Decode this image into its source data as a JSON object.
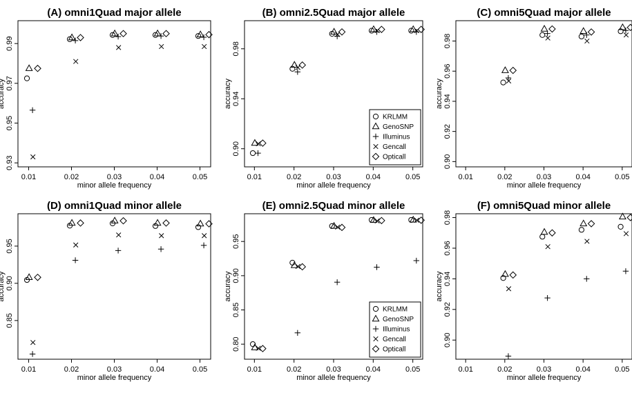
{
  "chart_data": [
    {
      "type": "scatter",
      "title": "(A) omni1Quad major allele",
      "xlabel": "minor allele frequency",
      "ylabel": "accuracy",
      "x": [
        0.01,
        0.02,
        0.03,
        0.04,
        0.05
      ],
      "x_ticks": [
        "0.01",
        "0.02",
        "0.03",
        "0.04",
        "0.05"
      ],
      "y_ticks": [
        "0.93",
        "0.95",
        "0.97",
        "0.99"
      ],
      "xlim": [
        0.0075,
        0.0525
      ],
      "ylim": [
        0.928,
        1.0015
      ],
      "legend": false,
      "series": [
        {
          "name": "KRLMM",
          "marker": "circle",
          "values": [
            0.9725,
            0.9922,
            0.9943,
            0.9943,
            0.9938
          ]
        },
        {
          "name": "GenoSNP",
          "marker": "triangle",
          "values": [
            0.9775,
            0.993,
            0.995,
            0.995,
            0.9945
          ]
        },
        {
          "name": "Illuminus",
          "marker": "plus",
          "values": [
            0.9565,
            0.9915,
            0.9935,
            0.9938,
            0.9932
          ]
        },
        {
          "name": "Gencall",
          "marker": "cross",
          "values": [
            0.933,
            0.981,
            0.988,
            0.9885,
            0.9885
          ]
        },
        {
          "name": "Opticall",
          "marker": "diamond",
          "values": [
            0.9775,
            0.993,
            0.995,
            0.995,
            0.9945
          ]
        }
      ]
    },
    {
      "type": "scatter",
      "title": "(B) omni2.5Quad major allele",
      "xlabel": "minor allele frequency",
      "ylabel": "accuracy",
      "x": [
        0.01,
        0.02,
        0.03,
        0.04,
        0.05
      ],
      "x_ticks": [
        "0.01",
        "0.02",
        "0.03",
        "0.04",
        "0.05"
      ],
      "y_ticks": [
        "0.90",
        "0.94",
        "0.98"
      ],
      "xlim": [
        0.0075,
        0.0525
      ],
      "ylim": [
        0.8855,
        1.0025
      ],
      "legend": true,
      "legend_position": "bottom-right",
      "series": [
        {
          "name": "KRLMM",
          "marker": "circle",
          "values": [
            0.8965,
            0.964,
            0.992,
            0.9945,
            0.9945
          ]
        },
        {
          "name": "GenoSNP",
          "marker": "triangle",
          "values": [
            0.9045,
            0.967,
            0.9935,
            0.9955,
            0.9955
          ]
        },
        {
          "name": "Illuminus",
          "marker": "plus",
          "values": [
            0.8965,
            0.9615,
            0.99,
            0.9935,
            0.9935
          ]
        },
        {
          "name": "Gencall",
          "marker": "cross",
          "values": [
            0.904,
            0.965,
            0.9915,
            0.9945,
            0.9945
          ]
        },
        {
          "name": "Opticall",
          "marker": "diamond",
          "values": [
            0.9045,
            0.967,
            0.9935,
            0.9955,
            0.9955
          ]
        }
      ]
    },
    {
      "type": "scatter",
      "title": "(C) omni5Quad major allele",
      "xlabel": "minor allele frequency",
      "ylabel": "accuracy",
      "x": [
        0.01,
        0.02,
        0.03,
        0.04,
        0.05
      ],
      "x_ticks": [
        "0.01",
        "0.02",
        "0.03",
        "0.04",
        "0.05"
      ],
      "y_ticks": [
        "0.90",
        "0.92",
        "0.94",
        "0.96",
        "0.98"
      ],
      "xlim": [
        0.0075,
        0.0525
      ],
      "ylim": [
        0.8965,
        0.9935
      ],
      "legend": false,
      "series": [
        {
          "name": "KRLMM",
          "marker": "circle",
          "values": [
            null,
            0.9525,
            0.984,
            0.983,
            0.9865
          ]
        },
        {
          "name": "GenoSNP",
          "marker": "triangle",
          "values": [
            null,
            0.9605,
            0.988,
            0.9865,
            0.989
          ]
        },
        {
          "name": "Illuminus",
          "marker": "plus",
          "values": [
            null,
            0.9555,
            0.985,
            0.984,
            0.987
          ]
        },
        {
          "name": "Gencall",
          "marker": "cross",
          "values": [
            null,
            0.9535,
            0.982,
            0.98,
            0.984
          ]
        },
        {
          "name": "Opticall",
          "marker": "diamond",
          "values": [
            null,
            0.9605,
            0.988,
            0.986,
            0.989
          ]
        }
      ]
    },
    {
      "type": "scatter",
      "title": "(D) omni1Quad minor allele",
      "xlabel": "minor allele frequency",
      "ylabel": "accuracy",
      "x": [
        0.01,
        0.02,
        0.03,
        0.04,
        0.05
      ],
      "x_ticks": [
        "0.01",
        "0.02",
        "0.03",
        "0.04",
        "0.05"
      ],
      "y_ticks": [
        "0.85",
        "0.90",
        "0.95"
      ],
      "xlim": [
        0.0075,
        0.0525
      ],
      "ylim": [
        0.798,
        0.9935
      ],
      "legend": false,
      "series": [
        {
          "name": "KRLMM",
          "marker": "circle",
          "values": [
            0.9045,
            0.9775,
            0.9805,
            0.977,
            0.9755
          ]
        },
        {
          "name": "GenoSNP",
          "marker": "triangle",
          "values": [
            0.908,
            0.981,
            0.984,
            0.981,
            0.98
          ]
        },
        {
          "name": "Illuminus",
          "marker": "plus",
          "values": [
            0.805,
            0.931,
            0.944,
            0.946,
            0.951
          ]
        },
        {
          "name": "Gencall",
          "marker": "cross",
          "values": [
            0.8205,
            0.9515,
            0.965,
            0.964,
            0.964
          ]
        },
        {
          "name": "Opticall",
          "marker": "diamond",
          "values": [
            0.908,
            0.981,
            0.984,
            0.981,
            0.98
          ]
        }
      ]
    },
    {
      "type": "scatter",
      "title": "(E) omni2.5Quad minor allele",
      "xlabel": "minor allele frequency",
      "ylabel": "accuracy",
      "x": [
        0.01,
        0.02,
        0.03,
        0.04,
        0.05
      ],
      "x_ticks": [
        "0.01",
        "0.02",
        "0.03",
        "0.04",
        "0.05"
      ],
      "y_ticks": [
        "0.80",
        "0.85",
        "0.90",
        "0.95"
      ],
      "xlim": [
        0.0075,
        0.0525
      ],
      "ylim": [
        0.778,
        0.9905
      ],
      "legend": true,
      "legend_position": "bottom-right",
      "series": [
        {
          "name": "KRLMM",
          "marker": "circle",
          "values": [
            0.8,
            0.919,
            0.9725,
            0.9815,
            0.9815
          ]
        },
        {
          "name": "GenoSNP",
          "marker": "triangle",
          "values": [
            0.795,
            0.915,
            0.9725,
            0.981,
            0.9815
          ]
        },
        {
          "name": "Illuminus",
          "marker": "plus",
          "values": [
            null,
            0.8165,
            0.8905,
            0.9125,
            0.922
          ]
        },
        {
          "name": "Gencall",
          "marker": "cross",
          "values": [
            0.794,
            0.9135,
            0.971,
            0.98,
            0.981
          ]
        },
        {
          "name": "Opticall",
          "marker": "diamond",
          "values": [
            0.7935,
            0.913,
            0.9705,
            0.9805,
            0.981
          ]
        }
      ]
    },
    {
      "type": "scatter",
      "title": "(F) omni5Quad minor allele",
      "xlabel": "minor allele frequency",
      "ylabel": "accuracy",
      "x": [
        0.01,
        0.02,
        0.03,
        0.04,
        0.05
      ],
      "x_ticks": [
        "0.01",
        "0.02",
        "0.03",
        "0.04",
        "0.05"
      ],
      "y_ticks": [
        "0.90",
        "0.92",
        "0.94",
        "0.96",
        "0.98"
      ],
      "xlim": [
        0.0075,
        0.0525
      ],
      "ylim": [
        0.8875,
        0.9825
      ],
      "legend": false,
      "series": [
        {
          "name": "KRLMM",
          "marker": "circle",
          "values": [
            null,
            0.9405,
            0.9675,
            0.972,
            0.974
          ]
        },
        {
          "name": "GenoSNP",
          "marker": "triangle",
          "values": [
            null,
            0.943,
            0.9705,
            0.976,
            0.9805
          ]
        },
        {
          "name": "Illuminus",
          "marker": "plus",
          "values": [
            null,
            0.8895,
            0.9275,
            0.94,
            0.945
          ]
        },
        {
          "name": "Gencall",
          "marker": "cross",
          "values": [
            null,
            0.9335,
            0.961,
            0.9645,
            0.9695
          ]
        },
        {
          "name": "Opticall",
          "marker": "diamond",
          "values": [
            null,
            0.9425,
            0.97,
            0.976,
            0.98
          ]
        }
      ]
    }
  ]
}
